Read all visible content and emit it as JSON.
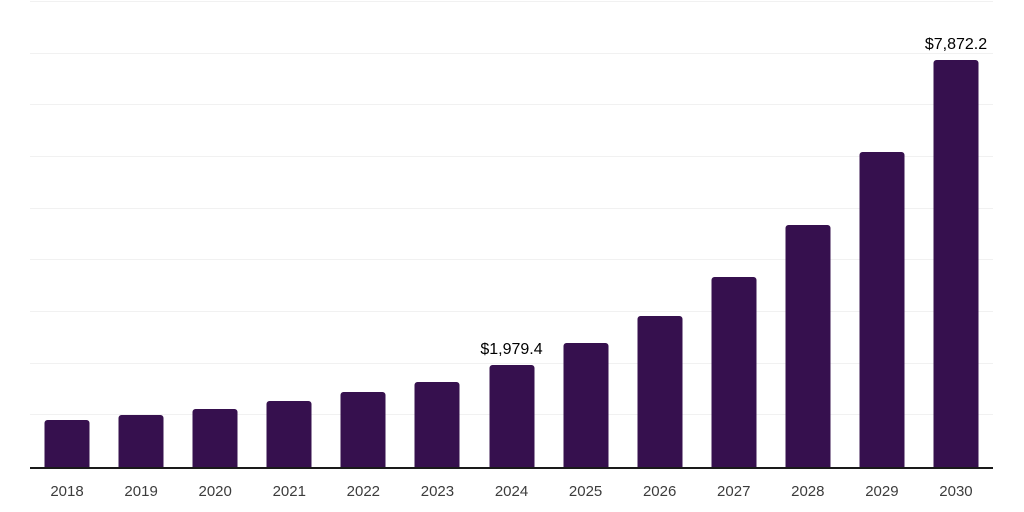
{
  "chart_data": {
    "type": "bar",
    "title": "",
    "xlabel": "",
    "ylabel": "",
    "categories": [
      "2018",
      "2019",
      "2020",
      "2021",
      "2022",
      "2023",
      "2024",
      "2025",
      "2026",
      "2027",
      "2028",
      "2029",
      "2030"
    ],
    "values": [
      915,
      1010,
      1115,
      1270,
      1445,
      1655,
      1979.4,
      2405,
      2930,
      3680,
      4680,
      6090,
      7872.2
    ],
    "point_labels": [
      "",
      "",
      "",
      "",
      "",
      "",
      "$1,979.4",
      "",
      "",
      "",
      "",
      "",
      "$7,872.2"
    ],
    "labeled_points": {
      "2024": "$1,979.4",
      "2030": "$7,872.2"
    },
    "ylim": [
      0,
      9000
    ],
    "gridline_step": 1000,
    "grid": "horizontal",
    "legend": "none",
    "colors": {
      "bar": "#36104E",
      "gridline": "#f1f1f1",
      "axis_line": "#1a1a1a",
      "tick_label": "#3c3c3c",
      "value_label": "#000000",
      "background": "#ffffff"
    }
  }
}
